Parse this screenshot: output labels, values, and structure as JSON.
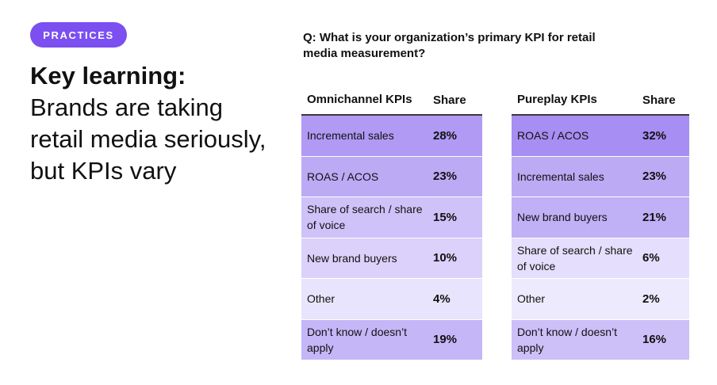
{
  "badge": "PRACTICES",
  "headline": {
    "title": "Key learning:",
    "body": "Brands are taking retail media seriously, but KPIs vary"
  },
  "question": "Q: What is your organization’s primary KPI for retail media measurement?",
  "tables": [
    {
      "header": {
        "label": "Omnichannel KPIs",
        "share": "Share"
      },
      "rows": [
        {
          "label": "Incremental sales",
          "share": "28%",
          "value": 28
        },
        {
          "label": "ROAS / ACOS",
          "share": "23%",
          "value": 23
        },
        {
          "label": "Share of search / share of voice",
          "share": "15%",
          "value": 15
        },
        {
          "label": "New brand buyers",
          "share": "10%",
          "value": 10
        },
        {
          "label": "Other",
          "share": "4%",
          "value": 4
        },
        {
          "label": "Don’t know / doesn’t apply",
          "share": "19%",
          "value": 19
        }
      ]
    },
    {
      "header": {
        "label": "Pureplay KPIs",
        "share": "Share"
      },
      "rows": [
        {
          "label": "ROAS / ACOS",
          "share": "32%",
          "value": 32
        },
        {
          "label": "Incremental sales",
          "share": "23%",
          "value": 23
        },
        {
          "label": "New brand buyers",
          "share": "21%",
          "value": 21
        },
        {
          "label": "Share of search / share of voice",
          "share": "6%",
          "value": 6
        },
        {
          "label": "Other",
          "share": "2%",
          "value": 2
        },
        {
          "label": "Don’t know / doesn’t apply",
          "share": "16%",
          "value": 16
        }
      ]
    }
  ],
  "colors": {
    "accent": "#7b4ff0",
    "shade_strong": "#a68ef2",
    "shade_light": "#f3f0fe"
  }
}
